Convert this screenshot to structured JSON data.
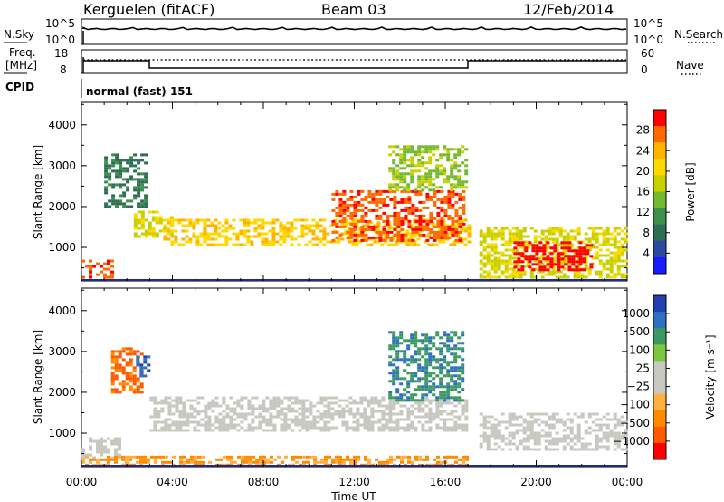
{
  "header": {
    "station": "Kerguelen (fitACF)",
    "beam": "Beam 03",
    "date": "12/Feb/2014"
  },
  "top_panels": {
    "nsky_label": "N.Sky",
    "nsearch_label": "N.Search",
    "nsky_ticks": [
      "10^5",
      "10^0"
    ],
    "nsearch_ticks": [
      "10^5",
      "10^0"
    ],
    "freq_label_1": "Freq.",
    "freq_label_2": "[MHz]",
    "freq_ticks": [
      "18",
      "8"
    ],
    "nave_label": "Nave",
    "nave_ticks": [
      "60",
      "0"
    ],
    "cpid_label": "CPID",
    "cpid_value": "normal (fast) 151"
  },
  "chart_data": [
    {
      "type": "heatmap",
      "name": "power",
      "ylabel": "Slant Range [km]",
      "ylim": [
        180,
        4550
      ],
      "yticks": [
        "4000",
        "3000",
        "2000",
        "1000"
      ],
      "xlim": [
        0,
        24
      ],
      "colorbar_label": "Power [dB]",
      "colorbar_ticks": [
        "28",
        "24",
        "20",
        "16",
        "12",
        "8",
        "4"
      ],
      "colorbar_colors": [
        "#ff0000",
        "#ff6a00",
        "#ffb300",
        "#ffd800",
        "#c8d000",
        "#72b830",
        "#3d8f4a",
        "#2d6f55",
        "#2e4aa0",
        "#1a1aff"
      ],
      "blobs": [
        {
          "t0": 0.0,
          "t1": 1.4,
          "r0": 300,
          "r1": 700,
          "level": 0.85
        },
        {
          "t0": 2.3,
          "t1": 4.0,
          "r0": 1250,
          "r1": 1900,
          "level": 0.55
        },
        {
          "t0": 3.6,
          "t1": 17.0,
          "r0": 1100,
          "r1": 1700,
          "level": 0.65
        },
        {
          "t0": 11.0,
          "t1": 16.8,
          "r0": 1200,
          "r1": 2400,
          "level": 0.9
        },
        {
          "t0": 13.5,
          "t1": 17.0,
          "r0": 2400,
          "r1": 3500,
          "level": 0.4
        },
        {
          "t0": 1.0,
          "t1": 2.8,
          "r0": 2000,
          "r1": 3300,
          "level": 0.2
        },
        {
          "t0": 17.5,
          "t1": 24.0,
          "r0": 300,
          "r1": 1500,
          "level": 0.55
        },
        {
          "t0": 19.0,
          "t1": 22.5,
          "r0": 450,
          "r1": 1150,
          "level": 0.95
        }
      ]
    },
    {
      "type": "heatmap",
      "name": "velocity",
      "ylabel": "Slant Range [km]",
      "ylim": [
        180,
        4550
      ],
      "yticks": [
        "4000",
        "3000",
        "2000",
        "1000"
      ],
      "xlim": [
        0,
        24
      ],
      "xticks": [
        "00:00",
        "04:00",
        "08:00",
        "12:00",
        "16:00",
        "20:00",
        "00:00"
      ],
      "xlabel": "Time UT",
      "colorbar_label": "Velocity [m s⁻¹]",
      "colorbar_ticks": [
        "1000",
        "500",
        "100",
        "25",
        "−25",
        "−100",
        "−500",
        "−1000"
      ],
      "colorbar_colors": [
        "#2040b0",
        "#3070c0",
        "#3a9a60",
        "#7ac840",
        "#c8c8c0",
        "#c8c8c0",
        "#ffb040",
        "#ff8a00",
        "#ff5a00",
        "#ff0000"
      ],
      "blobs": [
        {
          "t0": 3.0,
          "t1": 17.0,
          "r0": 1100,
          "r1": 1900,
          "level": 0.5
        },
        {
          "t0": 0.0,
          "t1": 1.6,
          "r0": 400,
          "r1": 900,
          "level": 0.5
        },
        {
          "t0": 1.3,
          "t1": 2.7,
          "r0": 2000,
          "r1": 3100,
          "level": 0.1
        },
        {
          "t0": 2.4,
          "t1": 2.9,
          "r0": 2400,
          "r1": 2900,
          "level": 0.85
        },
        {
          "t0": 13.5,
          "t1": 16.8,
          "r0": 1800,
          "r1": 3500,
          "level": 0.75
        },
        {
          "t0": 17.5,
          "t1": 24.0,
          "r0": 600,
          "r1": 1500,
          "level": 0.5
        },
        {
          "t0": 0.0,
          "t1": 17.0,
          "r0": 200,
          "r1": 450,
          "level": 0.25
        }
      ]
    }
  ]
}
